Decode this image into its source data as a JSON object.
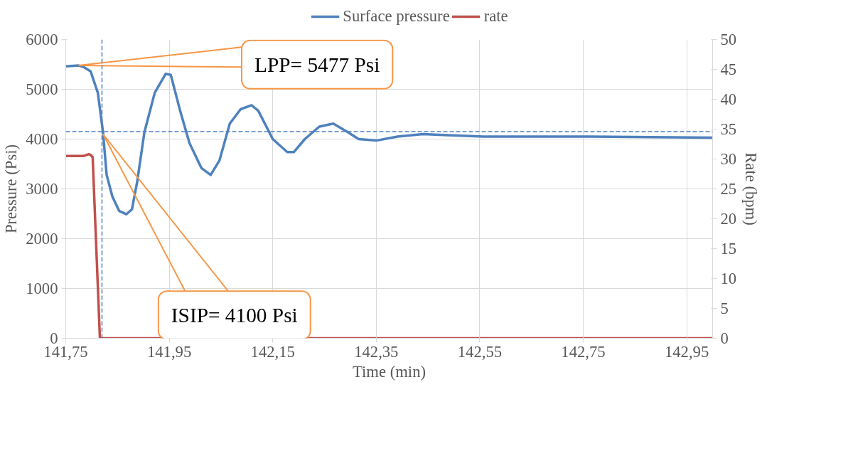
{
  "chart_data": {
    "type": "line",
    "xlabel": "Time (min)",
    "ylabel": "Pressure (Psi)",
    "y2label": "Rate (bpm)",
    "xlim": [
      141.75,
      143.0
    ],
    "xticks": [
      {
        "value": 141.75,
        "label": "141,75"
      },
      {
        "value": 141.95,
        "label": "141,95"
      },
      {
        "value": 142.15,
        "label": "142,15"
      },
      {
        "value": 142.35,
        "label": "142,35"
      },
      {
        "value": 142.55,
        "label": "142,55"
      },
      {
        "value": 142.75,
        "label": "142,75"
      },
      {
        "value": 142.95,
        "label": "142,95"
      }
    ],
    "ylim": [
      0,
      6000
    ],
    "yticks": [
      0,
      1000,
      2000,
      3000,
      4000,
      5000,
      6000
    ],
    "y2lim": [
      0,
      50
    ],
    "y2ticks": [
      0,
      5,
      10,
      15,
      20,
      25,
      30,
      35,
      40,
      45,
      50
    ],
    "grid": true,
    "legend": "top",
    "line_style": "solid",
    "marker": "none",
    "series": [
      {
        "name": "Surface pressure",
        "color": "#4f81bd",
        "x": [
          141.75,
          141.775,
          141.784,
          141.798,
          141.812,
          141.822,
          141.829,
          141.84,
          141.853,
          141.867,
          141.878,
          141.888,
          141.902,
          141.922,
          141.943,
          141.953,
          141.971,
          141.989,
          142.012,
          142.03,
          142.047,
          142.067,
          142.088,
          142.109,
          142.122,
          142.15,
          142.178,
          142.191,
          142.212,
          142.24,
          142.267,
          142.295,
          142.316,
          142.35,
          142.391,
          142.44,
          142.488,
          142.557,
          142.764,
          143.0
        ],
        "values": [
          5460,
          5477,
          5450,
          5360,
          4930,
          4140,
          3280,
          2850,
          2560,
          2490,
          2590,
          3140,
          4140,
          4930,
          5310,
          5290,
          4570,
          3920,
          3420,
          3280,
          3570,
          4310,
          4600,
          4680,
          4570,
          4000,
          3740,
          3740,
          4000,
          4250,
          4310,
          4140,
          4000,
          3970,
          4050,
          4100,
          4080,
          4050,
          4050,
          4030
        ]
      },
      {
        "name": "rate",
        "color": "#c0504d",
        "axis": "y2",
        "x": [
          141.75,
          141.784,
          141.794,
          141.798,
          141.802,
          141.816,
          141.823,
          143.0
        ],
        "values": [
          30.5,
          30.5,
          30.8,
          30.7,
          30.3,
          0,
          0,
          0
        ]
      }
    ],
    "ref_lines": [
      {
        "axis": "x",
        "value": 141.82,
        "color": "#4f81bd",
        "line_style": "dashed"
      },
      {
        "axis": "y",
        "value": 4150,
        "color": "#4f81bd",
        "line_style": "dashed"
      }
    ],
    "annotations": [
      {
        "text": "LPP= 5477 Psi",
        "x": 141.775,
        "y": 5477
      },
      {
        "text": "ISIP= 4100 Psi",
        "x": 141.822,
        "y": 4100
      }
    ]
  }
}
